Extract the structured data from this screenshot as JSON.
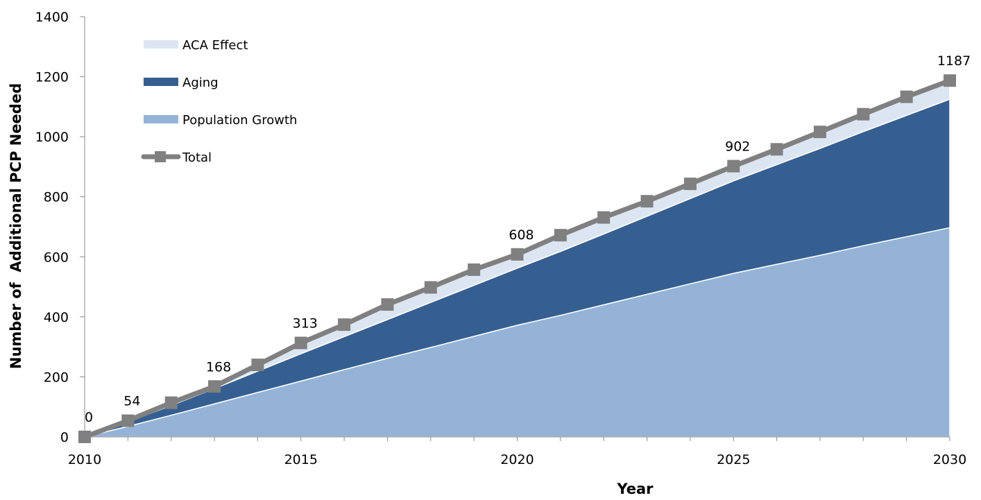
{
  "chart_data": {
    "type": "area",
    "title": "",
    "xlabel": "Year",
    "ylabel": "Number of  Additional PCP Needed",
    "xlim": [
      2010,
      2030
    ],
    "ylim": [
      0,
      1400
    ],
    "x_ticks": [
      2010,
      2015,
      2020,
      2025,
      2030
    ],
    "y_ticks": [
      0,
      200,
      400,
      600,
      800,
      1000,
      1200,
      1400
    ],
    "grid": false,
    "legend_position": "top-left",
    "x": [
      2010,
      2011,
      2012,
      2013,
      2014,
      2015,
      2016,
      2017,
      2018,
      2019,
      2020,
      2021,
      2022,
      2023,
      2024,
      2025,
      2026,
      2027,
      2028,
      2029,
      2030
    ],
    "series": [
      {
        "name": "Population Growth",
        "kind": "stacked-area",
        "color": "#95b3d7",
        "values": [
          0,
          35,
          72,
          110,
          148,
          186,
          224,
          262,
          298,
          335,
          372,
          405,
          440,
          475,
          510,
          545,
          575,
          605,
          637,
          667,
          697
        ]
      },
      {
        "name": "Aging",
        "kind": "stacked-area",
        "color": "#365f91",
        "values": [
          0,
          15,
          33,
          51,
          71,
          91,
          110,
          129,
          150,
          170,
          190,
          213,
          236,
          260,
          284,
          308,
          332,
          356,
          380,
          404,
          428
        ]
      },
      {
        "name": "ACA Effect",
        "kind": "stacked-area",
        "color": "#dce6f2",
        "values": [
          0,
          4,
          9,
          7,
          21,
          36,
          40,
          50,
          50,
          52,
          46,
          54,
          55,
          50,
          49,
          49,
          51,
          55,
          58,
          62,
          62
        ]
      },
      {
        "name": "Total",
        "kind": "line-markers",
        "color": "#808080",
        "values": [
          0,
          54,
          114,
          168,
          240,
          313,
          374,
          441,
          498,
          557,
          608,
          672,
          731,
          785,
          843,
          902,
          958,
          1016,
          1075,
          1133,
          1187
        ]
      }
    ],
    "data_labels": [
      {
        "x": 2010,
        "value": "0"
      },
      {
        "x": 2011,
        "value": "54"
      },
      {
        "x": 2013,
        "value": "168"
      },
      {
        "x": 2015,
        "value": "313"
      },
      {
        "x": 2020,
        "value": "608"
      },
      {
        "x": 2025,
        "value": "902"
      },
      {
        "x": 2030,
        "value": "1187"
      }
    ],
    "legend_order": [
      "ACA Effect",
      "Aging",
      "Population Growth",
      "Total"
    ]
  }
}
